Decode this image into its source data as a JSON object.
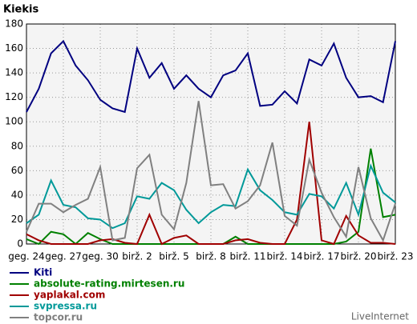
{
  "chart_data": {
    "type": "line",
    "title": "Kiekis",
    "footer": "LiveInternet",
    "categories": [
      "geg. 24",
      null,
      null,
      "geg. 27",
      null,
      null,
      "geg. 30",
      null,
      null,
      "birž. 2",
      null,
      null,
      "birž. 5",
      null,
      null,
      "birž. 8",
      null,
      null,
      "birž. 11",
      null,
      null,
      "birž. 14",
      null,
      null,
      "birž. 17",
      null,
      null,
      "birž. 20",
      null,
      null,
      "birž. 23"
    ],
    "ylim": [
      0,
      180
    ],
    "yticks": [
      0,
      20,
      40,
      60,
      80,
      100,
      120,
      140,
      160,
      180
    ],
    "grid": true,
    "series": [
      {
        "name": "Kiti",
        "color": "#000080",
        "values": [
          108,
          127,
          156,
          166,
          146,
          134,
          118,
          111,
          108,
          160,
          136,
          148,
          127,
          138,
          127,
          120,
          138,
          142,
          156,
          113,
          114,
          125,
          115,
          151,
          146,
          164,
          136,
          120,
          121,
          116,
          166
        ]
      },
      {
        "name": "absolute-rating.mirtesen.ru",
        "color": "#008000",
        "values": [
          4,
          0,
          10,
          8,
          0,
          9,
          4,
          0,
          0,
          0,
          0,
          0,
          0,
          0,
          0,
          0,
          0,
          6,
          0,
          0,
          0,
          0,
          0,
          0,
          0,
          0,
          2,
          10,
          78,
          22,
          24
        ]
      },
      {
        "name": "yaplakal.com",
        "color": "#a00000",
        "values": [
          8,
          3,
          0,
          0,
          0,
          0,
          3,
          4,
          1,
          0,
          24,
          0,
          5,
          7,
          0,
          0,
          0,
          3,
          4,
          1,
          0,
          0,
          20,
          100,
          3,
          0,
          23,
          7,
          1,
          1,
          0
        ]
      },
      {
        "name": "svpressa.ru",
        "color": "#009999",
        "values": [
          17,
          24,
          52,
          32,
          30,
          21,
          20,
          13,
          17,
          39,
          37,
          50,
          44,
          28,
          17,
          26,
          32,
          31,
          61,
          44,
          36,
          26,
          24,
          41,
          39,
          29,
          50,
          24,
          64,
          42,
          34
        ]
      },
      {
        "name": "topcor.ru",
        "color": "#808080",
        "values": [
          10,
          33,
          33,
          26,
          32,
          37,
          63,
          3,
          5,
          62,
          73,
          24,
          12,
          50,
          117,
          48,
          49,
          29,
          35,
          48,
          83,
          23,
          15,
          69,
          42,
          22,
          6,
          63,
          21,
          3,
          33
        ]
      }
    ]
  }
}
